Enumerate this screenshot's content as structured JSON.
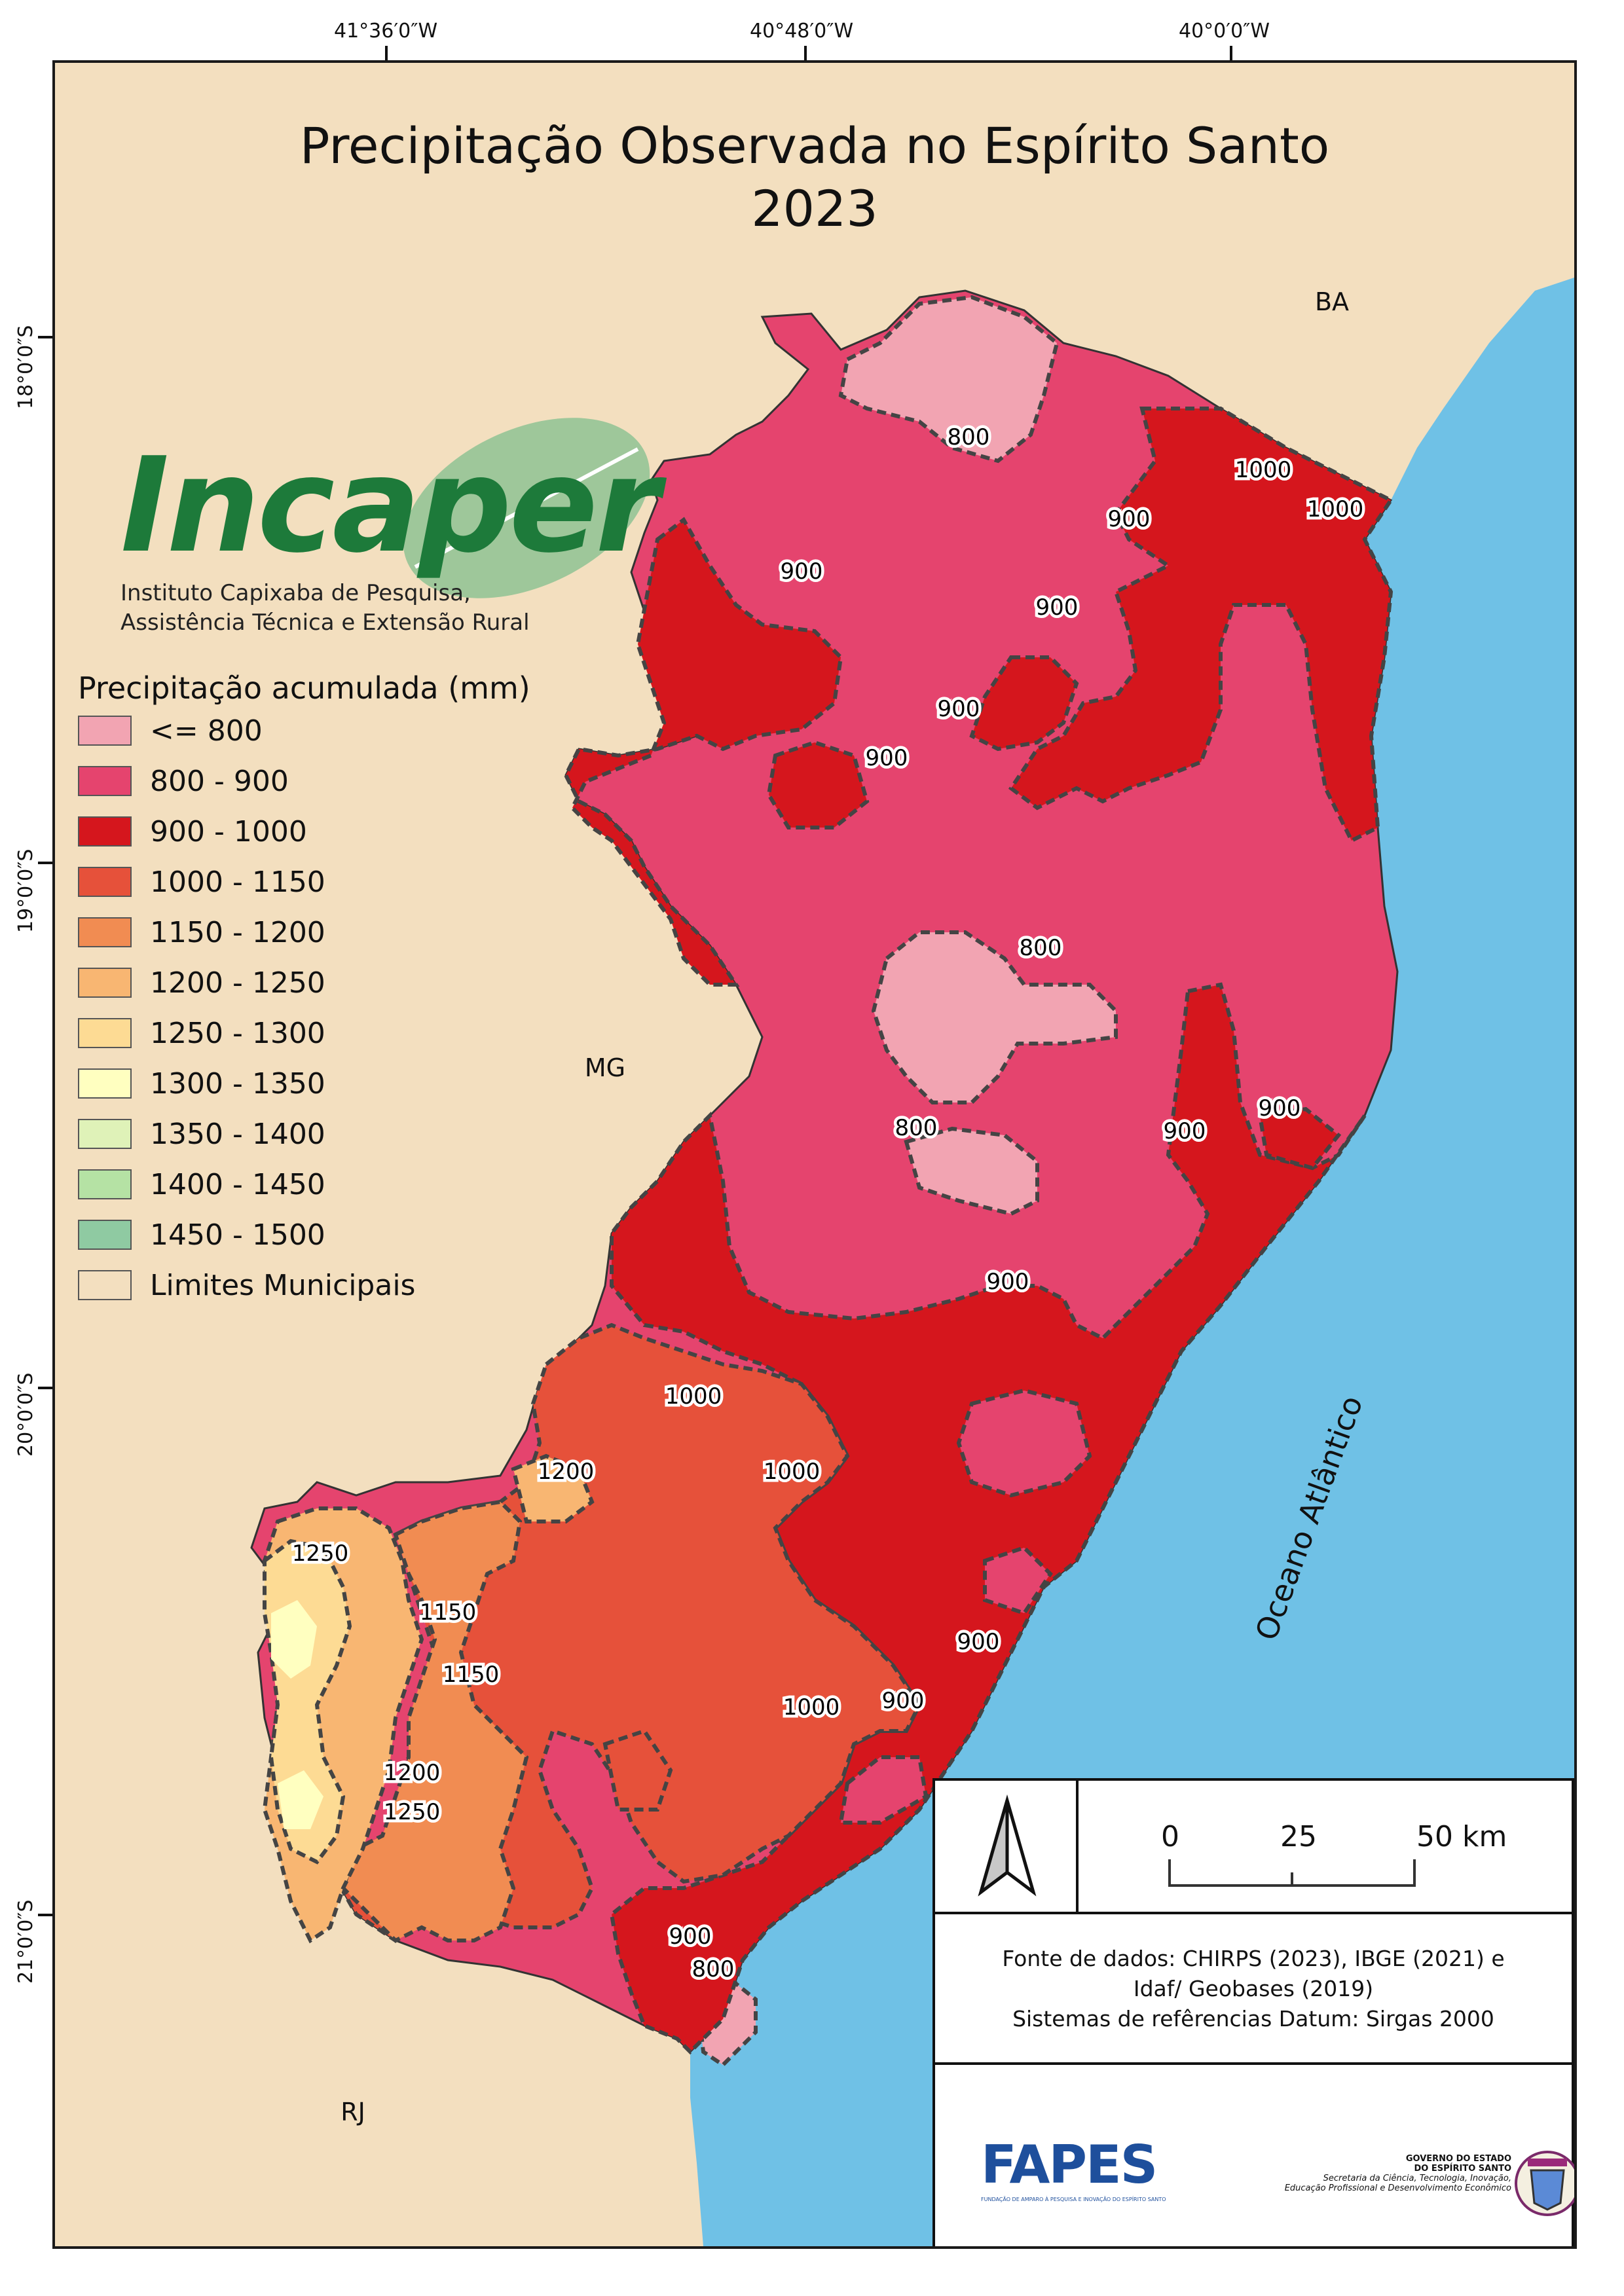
{
  "title": {
    "line1": "Precipitação Observada no Espírito Santo",
    "line2": "2023"
  },
  "coordinates": {
    "longitudes": [
      "41°36′0″W",
      "40°48′0″W",
      "40°0′0″W"
    ],
    "latitudes": [
      "18°0′0″S",
      "19°0′0″S",
      "20°0′0″S",
      "21°0′0″S"
    ]
  },
  "logo": {
    "name": "Incaper",
    "subtitle_line1": "Instituto Capixaba de Pesquisa,",
    "subtitle_line2": "Assistência Técnica e Extensão Rural"
  },
  "legend": {
    "title": "Precipitação acumulada (mm)",
    "items": [
      {
        "label": "<= 800",
        "color": "#f2a4b2"
      },
      {
        "label": "800 - 900",
        "color": "#e5446e"
      },
      {
        "label": "900 - 1000",
        "color": "#d5161d"
      },
      {
        "label": "1000 - 1150",
        "color": "#e6513a"
      },
      {
        "label": "1150 - 1200",
        "color": "#f18c52"
      },
      {
        "label": "1200 - 1250",
        "color": "#f8b672"
      },
      {
        "label": "1250 - 1300",
        "color": "#fddb94"
      },
      {
        "label": "1300 - 1350",
        "color": "#ffffc0"
      },
      {
        "label": "1350 - 1400",
        "color": "#dff2b8"
      },
      {
        "label": "1400 - 1450",
        "color": "#b5e2a4"
      },
      {
        "label": "1450 - 1500",
        "color": "#8fcaa2"
      },
      {
        "label": "Limites Municipais",
        "color": "#f3dfbf"
      }
    ]
  },
  "place_labels": {
    "ba": "BA",
    "mg": "MG",
    "rj": "RJ",
    "ocean": "Oceano Atlântico"
  },
  "isolines": [
    "800",
    "1000",
    "1000",
    "900",
    "900",
    "900",
    "900",
    "900",
    "800",
    "800",
    "900",
    "900",
    "900",
    "1000",
    "1200",
    "1000",
    "1250",
    "1150",
    "1150",
    "900",
    "1000",
    "900",
    "1200",
    "1250",
    "900",
    "800"
  ],
  "colors": {
    "background_land": "#f3dfbf",
    "ocean": "#6fc1e6",
    "state_fill": "#e5446e"
  },
  "scale_bar": {
    "ticks": [
      "0",
      "25",
      "50 km"
    ]
  },
  "source": {
    "line1": "Fonte de dados: CHIRPS (2023), IBGE (2021) e",
    "line2": "Idaf/ Geobases (2019)",
    "line3": "Sistemas de refêrencias Datum: Sirgas 2000"
  },
  "footer": {
    "fapes": "FAPES",
    "fapes_sub": "FUNDAÇÃO DE AMPARO À PESQUISA E INOVAÇÃO DO ESPÍRITO SANTO",
    "gov_line1": "GOVERNO DO ESTADO",
    "gov_line2": "DO ESPÍRITO SANTO",
    "gov_line3": "Secretaria da Ciência, Tecnologia, Inovação,",
    "gov_line4": "Educação Profissional e Desenvolvimento Econômico"
  }
}
